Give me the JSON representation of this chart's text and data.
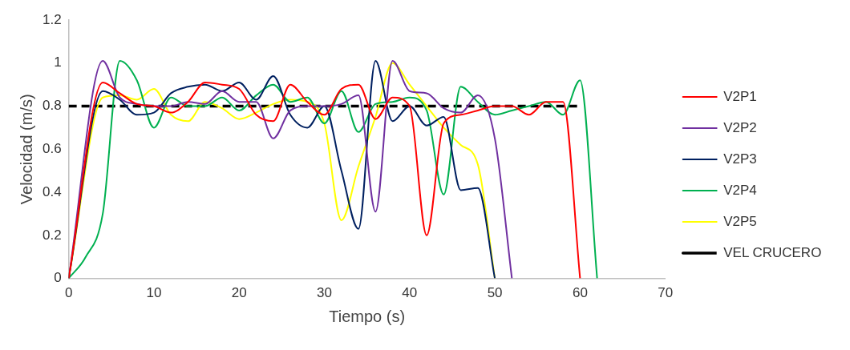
{
  "chart_data": {
    "type": "line",
    "xlabel": "Tiempo (s)",
    "ylabel": "Velocidad (m/s)",
    "xlim": [
      0,
      70
    ],
    "xticks": [
      0,
      10,
      20,
      30,
      40,
      50,
      60,
      70
    ],
    "ylim": [
      0,
      1.2
    ],
    "yticks": [
      0,
      0.2,
      0.4,
      0.6,
      0.8,
      1,
      1.2
    ],
    "grid": false,
    "legend": "right",
    "marker": "none",
    "series": [
      {
        "name": "V2P1",
        "color": "#ff0000",
        "x": [
          0,
          4,
          6,
          8,
          10,
          12,
          14,
          16,
          18,
          20,
          22,
          24,
          26,
          28,
          30,
          32,
          34,
          36,
          38,
          40,
          42,
          44,
          46,
          48,
          50,
          52,
          54,
          56,
          58,
          60
        ],
        "values": [
          0,
          0.91,
          0.86,
          0.81,
          0.8,
          0.77,
          0.82,
          0.91,
          0.9,
          0.88,
          0.76,
          0.73,
          0.9,
          0.82,
          0.76,
          0.88,
          0.9,
          0.74,
          0.84,
          0.8,
          0.2,
          0.72,
          0.76,
          0.78,
          0.8,
          0.8,
          0.76,
          0.82,
          0.82,
          0
        ]
      },
      {
        "name": "V2P2",
        "color": "#7030a0",
        "x": [
          0,
          4,
          6,
          8,
          10,
          12,
          14,
          16,
          18,
          20,
          22,
          24,
          26,
          28,
          30,
          32,
          34,
          36,
          38,
          40,
          42,
          44,
          46,
          48,
          50,
          52
        ],
        "values": [
          0,
          1.01,
          0.84,
          0.81,
          0.8,
          0.8,
          0.82,
          0.81,
          0.87,
          0.82,
          0.82,
          0.65,
          0.78,
          0.8,
          0.8,
          0.81,
          0.85,
          0.31,
          1.01,
          0.87,
          0.86,
          0.79,
          0.77,
          0.85,
          0.65,
          0
        ]
      },
      {
        "name": "V2P3",
        "color": "#002060",
        "x": [
          0,
          4,
          6,
          8,
          10,
          12,
          14,
          16,
          18,
          20,
          22,
          24,
          26,
          28,
          30,
          32,
          34,
          36,
          38,
          40,
          42,
          44,
          46,
          48,
          50
        ],
        "values": [
          0,
          0.87,
          0.83,
          0.76,
          0.77,
          0.86,
          0.89,
          0.9,
          0.87,
          0.91,
          0.83,
          0.94,
          0.76,
          0.7,
          0.8,
          0.5,
          0.23,
          1.01,
          0.73,
          0.8,
          0.71,
          0.75,
          0.41,
          0.42,
          0
        ]
      },
      {
        "name": "V2P4",
        "color": "#00b050",
        "x": [
          0,
          2,
          4,
          6,
          8,
          10,
          12,
          14,
          16,
          18,
          20,
          22,
          24,
          26,
          28,
          30,
          32,
          34,
          36,
          38,
          40,
          42,
          44,
          46,
          48,
          50,
          52,
          54,
          56,
          58,
          60,
          62
        ],
        "values": [
          0,
          0.1,
          0.3,
          1.01,
          0.92,
          0.7,
          0.84,
          0.8,
          0.8,
          0.84,
          0.78,
          0.85,
          0.9,
          0.82,
          0.84,
          0.72,
          0.87,
          0.68,
          0.81,
          0.82,
          0.84,
          0.78,
          0.39,
          0.89,
          0.82,
          0.76,
          0.78,
          0.8,
          0.82,
          0.76,
          0.92,
          0
        ]
      },
      {
        "name": "V2P5",
        "color": "#ffff00",
        "x": [
          0,
          4,
          6,
          8,
          10,
          12,
          14,
          16,
          18,
          20,
          22,
          24,
          26,
          28,
          30,
          32,
          34,
          36,
          38,
          40,
          42,
          44,
          46,
          48,
          50
        ],
        "values": [
          0,
          0.84,
          0.85,
          0.83,
          0.88,
          0.76,
          0.73,
          0.82,
          0.79,
          0.74,
          0.77,
          0.81,
          0.83,
          0.82,
          0.72,
          0.27,
          0.52,
          0.75,
          1.0,
          0.9,
          0.8,
          0.7,
          0.62,
          0.53,
          0
        ]
      },
      {
        "name": "VEL CRUCERO",
        "color": "#000000",
        "line_style": "dashed",
        "x": [
          0,
          60
        ],
        "values": [
          0.8,
          0.8
        ]
      }
    ]
  }
}
